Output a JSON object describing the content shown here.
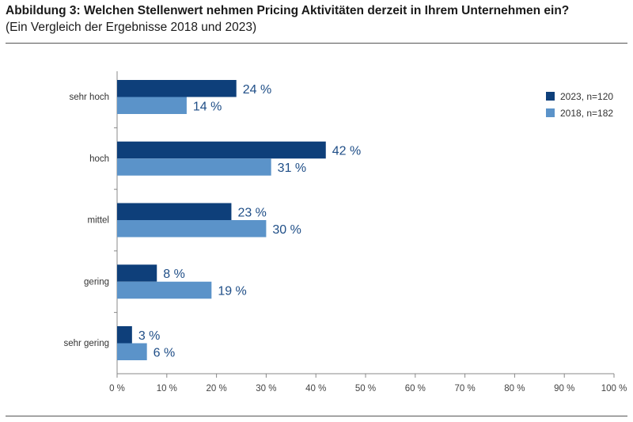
{
  "header": {
    "title": "Abbildung 3: Welchen Stellenwert nehmen Pricing Aktivitäten derzeit in Ihrem Unternehmen ein?",
    "subtitle": "(Ein Vergleich der Ergebnisse 2018 und 2023)"
  },
  "chart_data": {
    "type": "bar",
    "orientation": "horizontal",
    "categories": [
      "sehr hoch",
      "hoch",
      "mittel",
      "gering",
      "sehr gering"
    ],
    "series": [
      {
        "name": "2023, n=120",
        "color": "#0e3f7a",
        "values": [
          24,
          42,
          23,
          8,
          3
        ]
      },
      {
        "name": "2018, n=182",
        "color": "#5b93c9",
        "values": [
          14,
          31,
          30,
          19,
          6
        ]
      }
    ],
    "value_labels": [
      [
        "24 %",
        "42 %",
        "23 %",
        "8 %",
        "3 %"
      ],
      [
        "14 %",
        "31 %",
        "30 %",
        "19 %",
        "6 %"
      ]
    ],
    "x_ticks": [
      "0 %",
      "10 %",
      "20 %",
      "30 %",
      "40 %",
      "50 %",
      "60 %",
      "70 %",
      "80 %",
      "90 %",
      "100 %"
    ],
    "xlim": [
      0,
      100
    ],
    "grid": false,
    "legend_position": "top-right",
    "label_color": "#1f4e87"
  }
}
